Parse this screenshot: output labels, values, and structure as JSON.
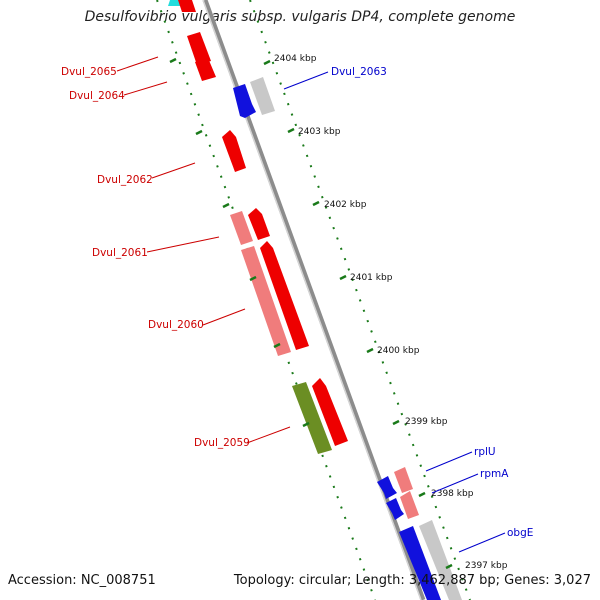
{
  "title": "Desulfovibrio vulgaris subsp. vulgaris DP4, complete genome",
  "footer": {
    "accession": "Accession: NC_008751",
    "stats": "Topology: circular; Length: 3,462,887 bp; Genes: 3,027"
  },
  "colors": {
    "gene_red": "#ee0000",
    "gene_pink": "#f07c7c",
    "gene_blue": "#1111dd",
    "gene_gray": "#c8c8c8",
    "gene_green": "#6b8e23",
    "gene_cyan": "#22dddd",
    "backbone": "#8c8c8c",
    "tick": "#1a7a1a",
    "label_red": "#cc0000",
    "label_blue": "#0000cc"
  },
  "kbp_ticks": [
    "2404 kbp",
    "2403 kbp",
    "2402 kbp",
    "2401 kbp",
    "2400 kbp",
    "2399 kbp",
    "2398 kbp",
    "2397 kbp"
  ],
  "gene_labels": [
    {
      "id": "Dvul_2065",
      "color": "red"
    },
    {
      "id": "Dvul_2064",
      "color": "red"
    },
    {
      "id": "Dvul_2063",
      "color": "blue"
    },
    {
      "id": "Dvul_2062",
      "color": "red"
    },
    {
      "id": "Dvul_2061",
      "color": "red"
    },
    {
      "id": "Dvul_2060",
      "color": "red"
    },
    {
      "id": "Dvul_2059",
      "color": "red"
    },
    {
      "id": "rplU",
      "color": "blue"
    },
    {
      "id": "rpmA",
      "color": "blue"
    },
    {
      "id": "obgE",
      "color": "blue"
    }
  ]
}
